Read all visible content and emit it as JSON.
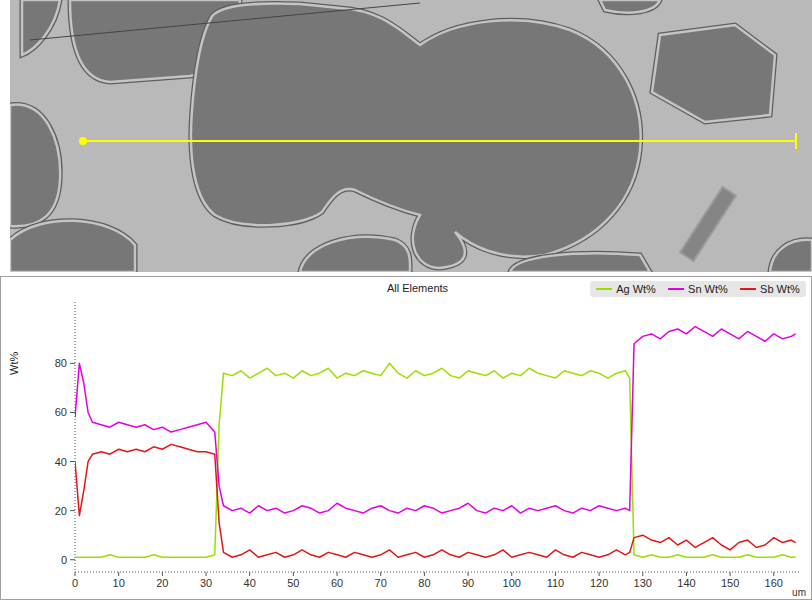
{
  "chart_data": {
    "type": "line",
    "title": "All Elements",
    "y_label": "Wt%",
    "x_label": "um",
    "x": [
      0,
      1,
      2,
      3,
      4,
      6,
      8,
      10,
      12,
      14,
      16,
      18,
      20,
      22,
      24,
      26,
      28,
      30,
      32,
      33,
      34,
      36,
      38,
      40,
      42,
      44,
      46,
      48,
      50,
      52,
      54,
      56,
      58,
      60,
      62,
      64,
      66,
      68,
      70,
      72,
      74,
      76,
      78,
      80,
      82,
      84,
      86,
      88,
      90,
      92,
      94,
      96,
      98,
      100,
      102,
      104,
      106,
      108,
      110,
      112,
      114,
      116,
      118,
      120,
      122,
      124,
      126,
      127,
      128,
      130,
      132,
      134,
      136,
      138,
      140,
      142,
      144,
      146,
      148,
      150,
      152,
      154,
      156,
      158,
      160,
      162,
      164,
      165
    ],
    "series": [
      {
        "name": "Ag Wt%",
        "color": "#99e000",
        "values": [
          1,
          1,
          1,
          1,
          1,
          1,
          2,
          1,
          1,
          1,
          1,
          2,
          1,
          1,
          1,
          1,
          1,
          1,
          2,
          55,
          76,
          75,
          77,
          74,
          76,
          78,
          75,
          76,
          74,
          77,
          75,
          76,
          78,
          74,
          76,
          75,
          77,
          76,
          75,
          80,
          76,
          74,
          77,
          75,
          76,
          78,
          75,
          74,
          77,
          76,
          75,
          77,
          74,
          76,
          75,
          78,
          76,
          75,
          74,
          77,
          76,
          75,
          77,
          76,
          74,
          76,
          77,
          74,
          2,
          1,
          2,
          1,
          1,
          2,
          1,
          1,
          1,
          2,
          1,
          1,
          1,
          2,
          1,
          1,
          1,
          2,
          1,
          1
        ]
      },
      {
        "name": "Sn Wt%",
        "color": "#e000e0",
        "values": [
          58,
          80,
          72,
          60,
          56,
          55,
          54,
          56,
          55,
          54,
          55,
          53,
          54,
          52,
          53,
          54,
          55,
          56,
          52,
          30,
          22,
          20,
          21,
          19,
          22,
          20,
          21,
          19,
          20,
          22,
          21,
          19,
          20,
          23,
          21,
          20,
          19,
          21,
          22,
          20,
          19,
          21,
          20,
          22,
          21,
          19,
          20,
          21,
          23,
          20,
          19,
          21,
          20,
          22,
          19,
          21,
          20,
          21,
          22,
          20,
          19,
          21,
          20,
          22,
          21,
          20,
          21,
          20,
          88,
          91,
          92,
          90,
          93,
          94,
          92,
          95,
          93,
          91,
          94,
          92,
          90,
          93,
          91,
          89,
          92,
          90,
          91,
          92
        ]
      },
      {
        "name": "Sb Wt%",
        "color": "#e01818",
        "values": [
          40,
          18,
          28,
          40,
          43,
          44,
          43,
          45,
          44,
          45,
          44,
          46,
          45,
          47,
          46,
          45,
          44,
          44,
          43,
          15,
          3,
          1,
          2,
          4,
          1,
          2,
          3,
          1,
          2,
          4,
          2,
          1,
          3,
          2,
          1,
          3,
          2,
          1,
          2,
          4,
          1,
          2,
          3,
          1,
          2,
          4,
          2,
          1,
          3,
          2,
          1,
          2,
          4,
          1,
          2,
          3,
          2,
          1,
          4,
          2,
          1,
          3,
          2,
          1,
          2,
          4,
          2,
          3,
          9,
          10,
          8,
          7,
          9,
          6,
          8,
          5,
          7,
          9,
          6,
          4,
          7,
          8,
          5,
          6,
          9,
          7,
          8,
          7
        ]
      }
    ],
    "xlim": [
      0,
      166
    ],
    "xticks": [
      0,
      10,
      20,
      30,
      40,
      50,
      60,
      70,
      80,
      90,
      100,
      110,
      120,
      130,
      140,
      150,
      160
    ],
    "ylim": [
      -5,
      105
    ],
    "yticks": [
      0,
      20,
      40,
      60,
      80
    ],
    "grid": false,
    "legend": "top-right"
  }
}
